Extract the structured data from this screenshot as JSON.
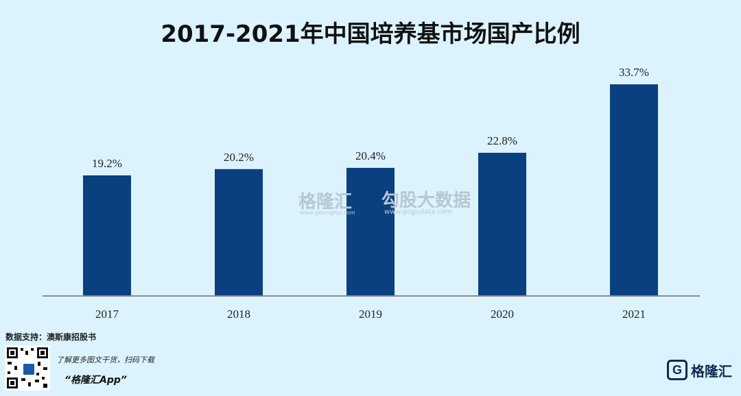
{
  "title": "2017-2021年中国培养基市场国产比例",
  "chart_data": {
    "type": "bar",
    "categories": [
      "2017",
      "2018",
      "2019",
      "2020",
      "2021"
    ],
    "values": [
      19.2,
      20.2,
      20.4,
      22.8,
      33.7
    ],
    "data_labels": [
      "19.2%",
      "20.2%",
      "20.4%",
      "22.8%",
      "33.7%"
    ],
    "ylim": [
      0,
      36
    ],
    "bar_color": "#0b4080",
    "grid": false,
    "legend": "none"
  },
  "watermark": {
    "brand": "格隆汇",
    "brand_url": "www.gelonghui.com",
    "brand2": "勾股大数据",
    "brand2_url": "www.gogudata.com"
  },
  "footer": {
    "source": "数据支持：澳斯康招股书",
    "promo": "了解更多图文干货，扫码下载",
    "app": "“格隆汇App”",
    "logo_mark": "G",
    "logo_text": "格隆汇",
    "qr_icon": "qr-code-icon"
  }
}
